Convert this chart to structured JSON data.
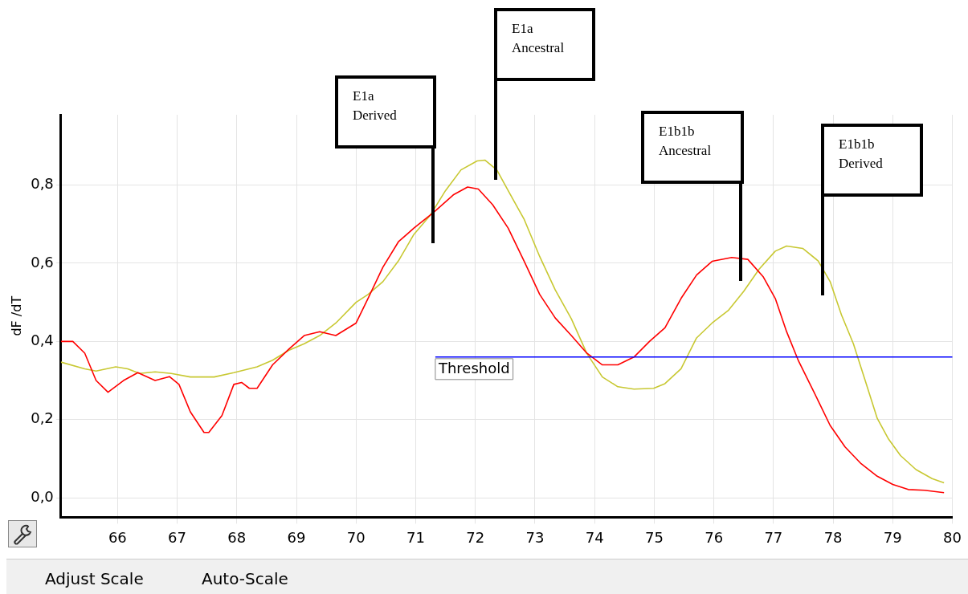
{
  "chart_data": {
    "type": "line",
    "ylabel": "dF /dT",
    "marker": "none",
    "line_style": "solid",
    "grid": true,
    "legend": false,
    "xlim": [
      65.05,
      80
    ],
    "xticks": [
      66,
      67,
      68,
      69,
      70,
      71,
      72,
      73,
      74,
      75,
      76,
      77,
      78,
      79,
      80
    ],
    "ylim": [
      -0.05,
      0.98
    ],
    "yticks": [
      {
        "value": 0,
        "label": "0,0"
      },
      {
        "value": 0.2,
        "label": "0,2"
      },
      {
        "value": 0.4,
        "label": "0,4"
      },
      {
        "value": 0.6,
        "label": "0,6"
      },
      {
        "value": 0.8,
        "label": "0,8"
      }
    ],
    "series": [
      {
        "color": "#ff0000",
        "x": [
          65.05,
          65.25,
          65.45,
          65.64,
          65.84,
          66.1,
          66.34,
          66.63,
          66.87,
          67.03,
          67.22,
          67.45,
          67.53,
          67.75,
          67.95,
          68.08,
          68.21,
          68.34,
          68.6,
          68.87,
          69.13,
          69.39,
          69.66,
          70,
          70.2,
          70.45,
          70.71,
          70.97,
          71.3,
          71.63,
          71.87,
          72.05,
          72.29,
          72.55,
          72.82,
          73.08,
          73.34,
          73.61,
          73.87,
          74.13,
          74.39,
          74.66,
          74.92,
          75.18,
          75.45,
          75.71,
          75.97,
          76.3,
          76.57,
          76.83,
          77.03,
          77.22,
          77.42,
          77.68,
          77.95,
          78.2,
          78.47,
          78.74,
          79,
          79.26,
          79.53,
          79.86
        ],
        "values": [
          0.4,
          0.4,
          0.37,
          0.3,
          0.27,
          0.3,
          0.32,
          0.3,
          0.31,
          0.29,
          0.22,
          0.167,
          0.167,
          0.21,
          0.29,
          0.295,
          0.28,
          0.28,
          0.34,
          0.38,
          0.415,
          0.425,
          0.415,
          0.447,
          0.51,
          0.59,
          0.655,
          0.69,
          0.73,
          0.775,
          0.795,
          0.79,
          0.75,
          0.69,
          0.605,
          0.52,
          0.46,
          0.415,
          0.37,
          0.34,
          0.34,
          0.36,
          0.4,
          0.435,
          0.51,
          0.57,
          0.605,
          0.615,
          0.61,
          0.565,
          0.51,
          0.425,
          0.35,
          0.27,
          0.185,
          0.13,
          0.087,
          0.055,
          0.034,
          0.021,
          0.019,
          0.013
        ]
      },
      {
        "color": "#c8c832",
        "x": [
          65.05,
          65.45,
          65.64,
          65.97,
          66.17,
          66.37,
          66.63,
          66.9,
          67.22,
          67.62,
          67.95,
          68.34,
          68.6,
          68.87,
          69.13,
          69.39,
          69.66,
          70,
          70.2,
          70.45,
          70.71,
          70.97,
          71.24,
          71.5,
          71.76,
          72.03,
          72.16,
          72.36,
          72.55,
          72.82,
          73.08,
          73.34,
          73.61,
          73.87,
          74.13,
          74.39,
          74.66,
          74.99,
          75.18,
          75.45,
          75.71,
          75.97,
          76.24,
          76.5,
          76.76,
          77.03,
          77.22,
          77.49,
          77.75,
          77.95,
          78.14,
          78.34,
          78.54,
          78.74,
          78.93,
          79.13,
          79.39,
          79.66,
          79.86
        ],
        "values": [
          0.347,
          0.33,
          0.324,
          0.335,
          0.33,
          0.318,
          0.322,
          0.318,
          0.309,
          0.309,
          0.32,
          0.335,
          0.352,
          0.377,
          0.394,
          0.415,
          0.447,
          0.5,
          0.52,
          0.553,
          0.606,
          0.674,
          0.722,
          0.786,
          0.839,
          0.862,
          0.864,
          0.839,
          0.786,
          0.712,
          0.617,
          0.532,
          0.458,
          0.369,
          0.309,
          0.284,
          0.278,
          0.28,
          0.292,
          0.33,
          0.409,
          0.447,
          0.479,
          0.528,
          0.585,
          0.631,
          0.644,
          0.638,
          0.606,
          0.553,
          0.468,
          0.394,
          0.299,
          0.203,
          0.15,
          0.108,
          0.072,
          0.049,
          0.038
        ]
      }
    ],
    "ref_lines": [
      {
        "axis": "y",
        "value": 0.36,
        "label": "Threshold",
        "color": "#0000ff"
      }
    ],
    "annotations": [
      "E1a Derived",
      "E1a Ancestral",
      "E1b1b Ancestral",
      "E1b1b Derived",
      "Adjust Scale",
      "Auto-Scale"
    ]
  }
}
